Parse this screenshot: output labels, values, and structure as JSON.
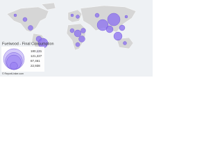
{
  "title": "Fuelwood - Final Consumption",
  "legend": {
    "items": [
      {
        "value": 180131,
        "label": "180,131"
      },
      {
        "value": 121227,
        "label": "121,227"
      },
      {
        "value": 87461,
        "label": "87,461"
      },
      {
        "value": 22938,
        "label": "22,938"
      }
    ]
  },
  "source": "© ReportLinker.com"
}
